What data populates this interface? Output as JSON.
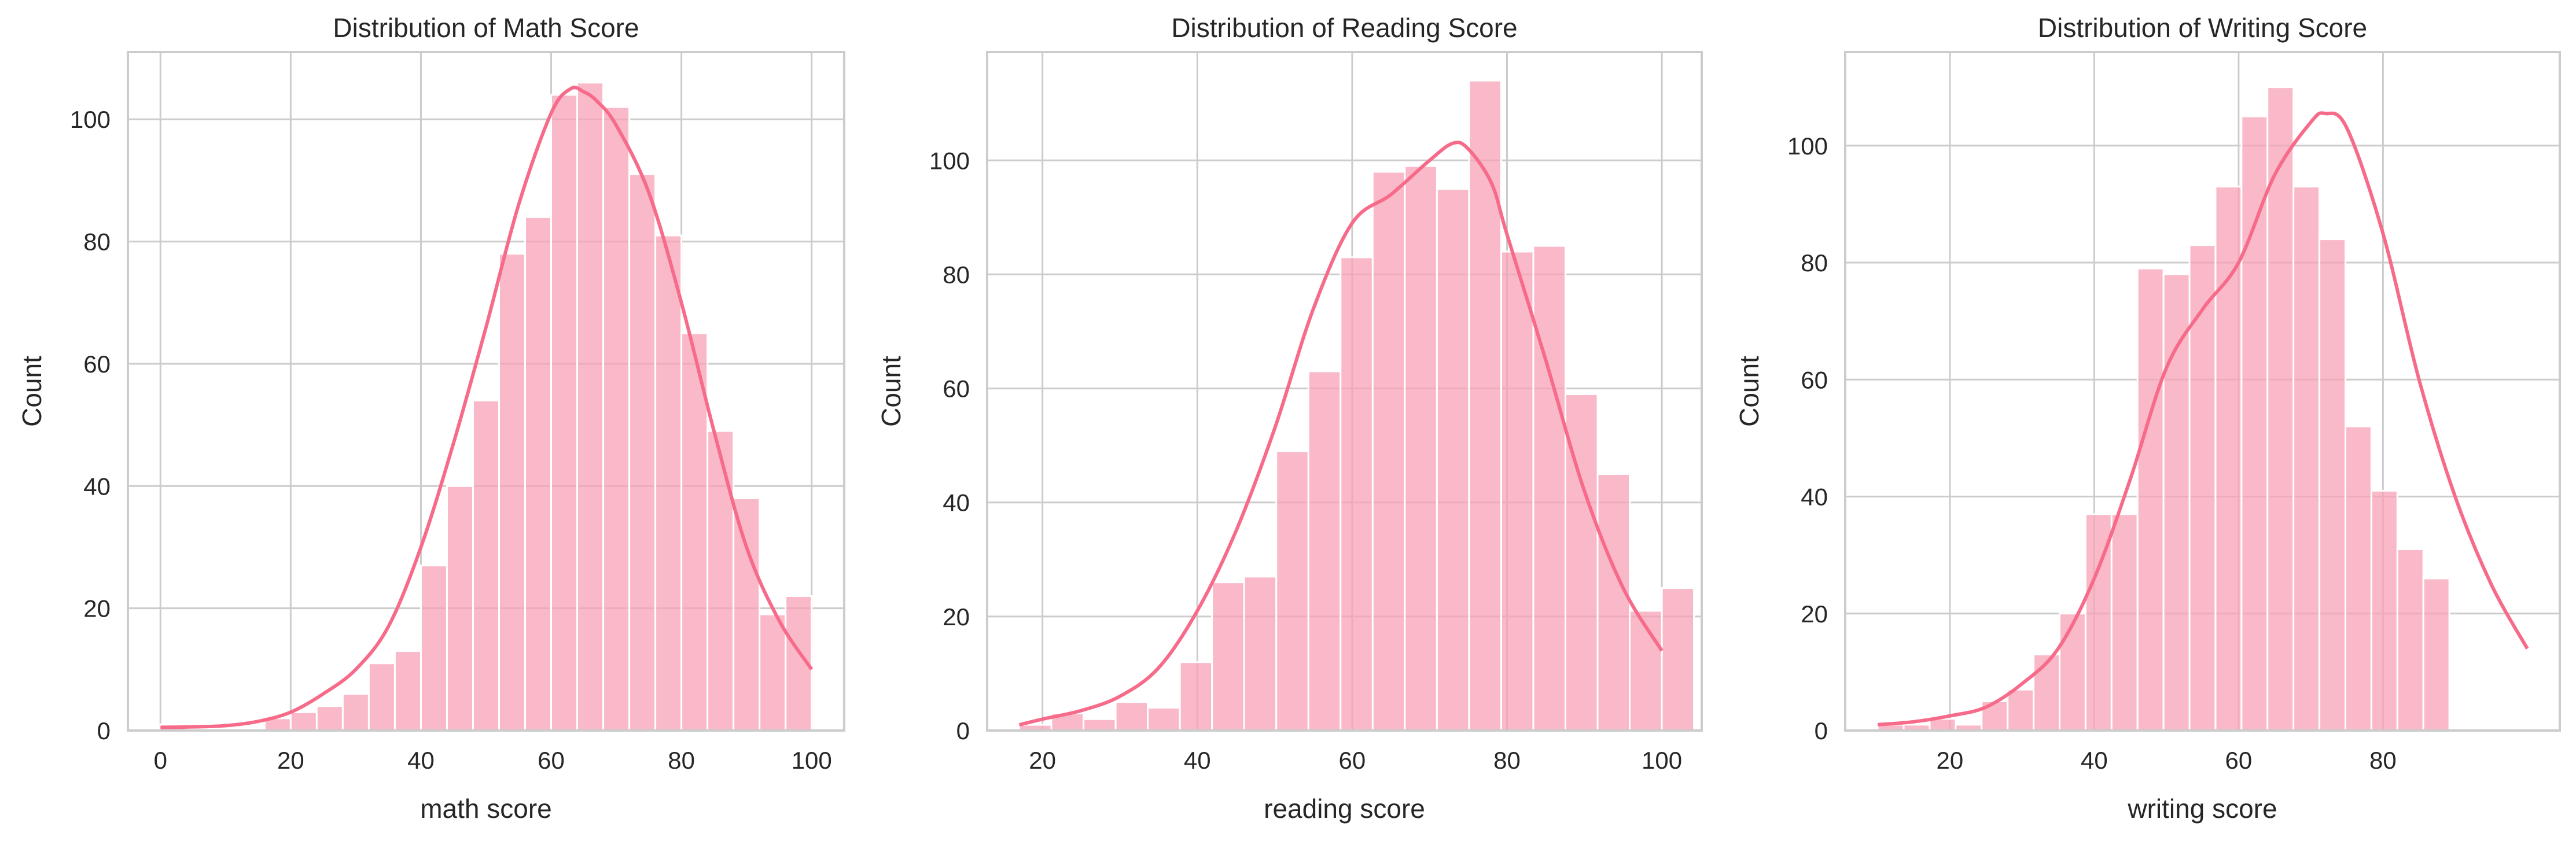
{
  "style": {
    "accent": "#f76b8a",
    "bar_fill": "#f7a1b6",
    "grid": "#cccccc",
    "text": "#262626"
  },
  "chart_data": [
    {
      "type": "bar",
      "title": "Distribution of Math Score",
      "xlabel": "math score",
      "ylabel": "Count",
      "xlim": [
        -5,
        105
      ],
      "ylim": [
        0,
        111
      ],
      "xticks": [
        0,
        20,
        40,
        60,
        80,
        100
      ],
      "yticks": [
        0,
        20,
        40,
        60,
        80,
        100
      ],
      "grid": true,
      "bins": {
        "start": 0,
        "width": 4,
        "counts": [
          1,
          0,
          0,
          0,
          2,
          3,
          4,
          6,
          11,
          13,
          27,
          40,
          54,
          78,
          84,
          104,
          106,
          102,
          91,
          81,
          65,
          49,
          38,
          19,
          22
        ]
      },
      "kde": {
        "x": [
          0,
          5,
          10,
          15,
          20,
          25,
          30,
          35,
          40,
          45,
          50,
          55,
          60,
          63,
          65,
          67,
          70,
          75,
          80,
          85,
          90,
          95,
          100
        ],
        "y": [
          0.5,
          0.6,
          0.8,
          1.5,
          3,
          6,
          10,
          17,
          30,
          47,
          66,
          86,
          101,
          105,
          104.5,
          103,
          99,
          88,
          70,
          49,
          30,
          18,
          10
        ]
      }
    },
    {
      "type": "bar",
      "title": "Distribution of Reading Score",
      "xlabel": "reading score",
      "ylabel": "Count",
      "xlim": [
        12.85,
        105.15
      ],
      "ylim": [
        0,
        119
      ],
      "xticks": [
        20,
        40,
        60,
        80,
        100
      ],
      "yticks": [
        0,
        20,
        40,
        60,
        80,
        100
      ],
      "grid": true,
      "bins": {
        "start": 17,
        "width": 4.15,
        "counts": [
          1,
          3,
          2,
          5,
          4,
          12,
          26,
          27,
          49,
          63,
          83,
          98,
          99,
          95,
          114,
          84,
          85,
          59,
          45,
          21,
          25
        ]
      },
      "kde": {
        "x": [
          17,
          20,
          25,
          30,
          35,
          40,
          45,
          50,
          55,
          60,
          65,
          70,
          73,
          75,
          78,
          80,
          85,
          90,
          95,
          100
        ],
        "y": [
          1,
          2,
          3.5,
          6,
          11,
          21,
          35,
          53,
          74,
          89,
          94,
          100,
          103,
          102,
          96,
          87,
          65,
          42,
          25,
          14
        ]
      }
    },
    {
      "type": "bar",
      "title": "Distribution of Writing Score",
      "xlabel": "writing score",
      "ylabel": "Count",
      "xlim": [
        5.5,
        104.5
      ],
      "ylim": [
        0,
        116
      ],
      "xticks": [
        20,
        40,
        60,
        80
      ],
      "yticks": [
        0,
        20,
        40,
        60,
        80,
        100
      ],
      "grid": true,
      "bins": {
        "start": 10,
        "width": 3.6,
        "counts": [
          1,
          1,
          2,
          1,
          5,
          7,
          13,
          20,
          37,
          37,
          79,
          78,
          83,
          93,
          105,
          110,
          93,
          84,
          52,
          41,
          31,
          26
        ]
      },
      "kde": {
        "x": [
          10,
          15,
          20,
          25,
          30,
          35,
          40,
          45,
          50,
          55,
          60,
          65,
          70,
          72,
          75,
          80,
          85,
          90,
          95,
          100
        ],
        "y": [
          1,
          1.5,
          2.5,
          4,
          8,
          14,
          26,
          43,
          62,
          72,
          80,
          95,
          104,
          105.5,
          103,
          85,
          60,
          40,
          25,
          14
        ]
      }
    }
  ]
}
